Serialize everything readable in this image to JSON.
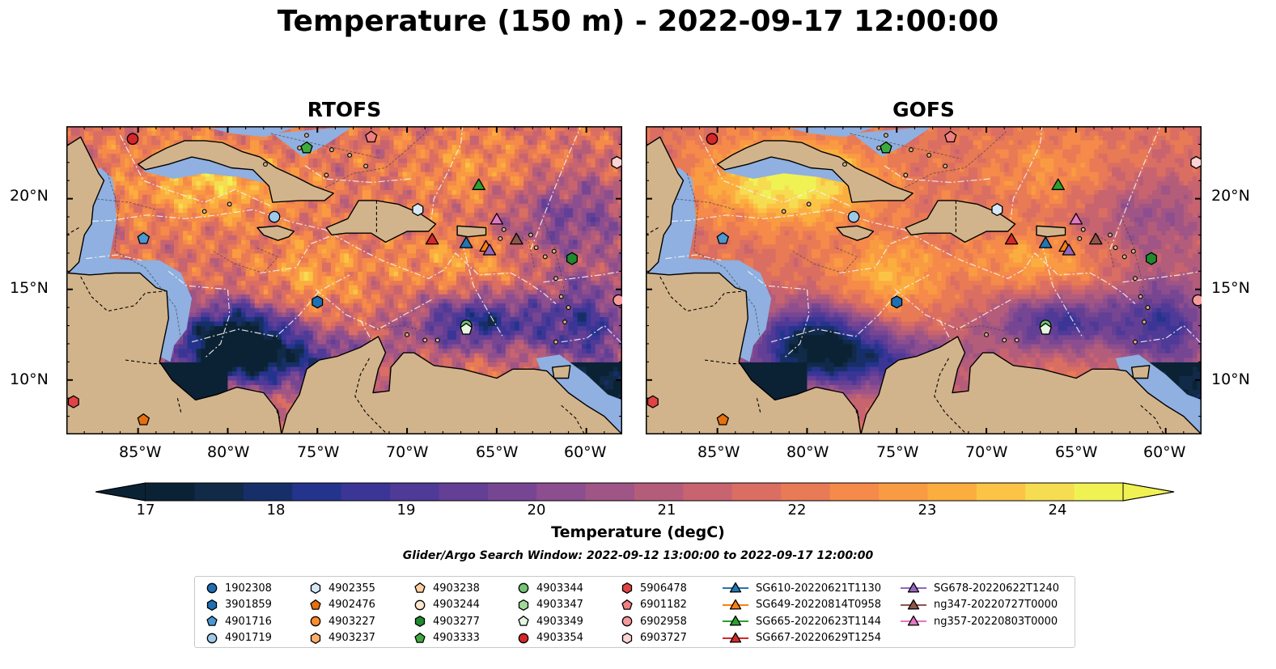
{
  "title": "Temperature (150 m) - 2022-09-17 12:00:00",
  "panels": [
    {
      "title": "RTOFS",
      "variant": "rtofs"
    },
    {
      "title": "GOFS",
      "variant": "gofs"
    }
  ],
  "lon_ticks": [
    "85°W",
    "80°W",
    "75°W",
    "70°W",
    "65°W",
    "60°W"
  ],
  "lat_ticks": [
    "20°N",
    "15°N",
    "10°N"
  ],
  "map_extent": {
    "lon": [
      -89,
      -58
    ],
    "lat": [
      7,
      24
    ]
  },
  "colorbar": {
    "label": "Temperature (degC)",
    "min": 16.5,
    "max": 24.5,
    "ticks": [
      "17",
      "18",
      "19",
      "20",
      "21",
      "22",
      "23",
      "24"
    ],
    "colors": [
      "#0b2234",
      "#112a48",
      "#172f68",
      "#24348c",
      "#3b3596",
      "#4f3a97",
      "#633f95",
      "#774693",
      "#8c4e8e",
      "#9f5585",
      "#b45d7b",
      "#c8646f",
      "#da6e63",
      "#e87a55",
      "#f58a4a",
      "#f99b42",
      "#fbae3f",
      "#fbc447",
      "#f6dc50",
      "#f0f254"
    ],
    "extend": "both"
  },
  "search_window": "Glider/Argo Search Window: 2022-09-12 13:00:00 to 2022-09-17 12:00:00",
  "land_color": "#d2b48c",
  "shelf_color": "#8fb0e0",
  "legend_items": [
    {
      "label": "1902308",
      "shape": "circle",
      "color": "#1f6fb4"
    },
    {
      "label": "3901859",
      "shape": "hexagon",
      "color": "#1f6fb4"
    },
    {
      "label": "4901716",
      "shape": "pentagon",
      "color": "#4a98d2"
    },
    {
      "label": "4901719",
      "shape": "circle",
      "color": "#9ecae9"
    },
    {
      "label": "4902355",
      "shape": "hexagon",
      "color": "#d6e8f6"
    },
    {
      "label": "4902476",
      "shape": "pentagon",
      "color": "#e6700f"
    },
    {
      "label": "4903227",
      "shape": "circle",
      "color": "#fd8d2c"
    },
    {
      "label": "4903237",
      "shape": "hexagon",
      "color": "#fdae6b"
    },
    {
      "label": "4903238",
      "shape": "pentagon",
      "color": "#fdd0a2"
    },
    {
      "label": "4903244",
      "shape": "circle",
      "color": "#fde7cf"
    },
    {
      "label": "4903277",
      "shape": "hexagon",
      "color": "#1f8a2e"
    },
    {
      "label": "4903333",
      "shape": "pentagon",
      "color": "#3eaa3e"
    },
    {
      "label": "4903344",
      "shape": "circle",
      "color": "#74c476"
    },
    {
      "label": "4903347",
      "shape": "hexagon",
      "color": "#a1d99b"
    },
    {
      "label": "4903349",
      "shape": "pentagon",
      "color": "#e5f5e0"
    },
    {
      "label": "4903354",
      "shape": "circle",
      "color": "#d62728"
    },
    {
      "label": "5906478",
      "shape": "hexagon",
      "color": "#e04444"
    },
    {
      "label": "6901182",
      "shape": "pentagon",
      "color": "#f07f7f"
    },
    {
      "label": "6902958",
      "shape": "circle",
      "color": "#f79a9a"
    },
    {
      "label": "6903727",
      "shape": "hexagon",
      "color": "#fdd3d3"
    },
    {
      "label": "SG610-20220621T1130",
      "shape": "triangle",
      "color": "#1f77b4"
    },
    {
      "label": "SG649-20220814T0958",
      "shape": "triangle",
      "color": "#ff7f0e"
    },
    {
      "label": "SG665-20220623T1144",
      "shape": "triangle",
      "color": "#2ca02c"
    },
    {
      "label": "SG667-20220629T1254",
      "shape": "triangle",
      "color": "#d62728"
    },
    {
      "label": "SG678-20220622T1240",
      "shape": "triangle",
      "color": "#9467bd"
    },
    {
      "label": "ng347-20220727T0000",
      "shape": "triangle",
      "color": "#8c564b"
    },
    {
      "label": "ng357-20220803T0000",
      "shape": "triangle",
      "color": "#e377c2"
    }
  ],
  "observations": [
    {
      "id": "4903354",
      "lon": -85.3,
      "lat": 23.3
    },
    {
      "id": "5906478",
      "lon": -88.6,
      "lat": 8.8
    },
    {
      "id": "4902476",
      "lon": -84.7,
      "lat": 7.8
    },
    {
      "id": "4901716",
      "lon": -84.7,
      "lat": 17.8
    },
    {
      "id": "4901719",
      "lon": -77.4,
      "lat": 19.0
    },
    {
      "id": "3901859",
      "lon": -75.0,
      "lat": 14.3
    },
    {
      "id": "4903333",
      "lon": -75.6,
      "lat": 22.8
    },
    {
      "id": "6901182",
      "lon": -72.0,
      "lat": 23.4
    },
    {
      "id": "4902355",
      "lon": -69.4,
      "lat": 19.4
    },
    {
      "id": "4903344",
      "lon": -66.7,
      "lat": 13.0
    },
    {
      "id": "4903349",
      "lon": -66.7,
      "lat": 12.8
    },
    {
      "id": "4903277",
      "lon": -60.8,
      "lat": 16.7
    },
    {
      "id": "6903727",
      "lon": -58.3,
      "lat": 22.0
    },
    {
      "id": "6902958",
      "lon": -58.2,
      "lat": 14.4
    },
    {
      "id": "SG665-20220623T1144",
      "lon": -66.0,
      "lat": 20.7
    },
    {
      "id": "SG667-20220629T1254",
      "lon": -68.6,
      "lat": 17.7
    },
    {
      "id": "SG610-20220621T1130",
      "lon": -66.7,
      "lat": 17.5
    },
    {
      "id": "SG649-20220814T0958",
      "lon": -65.6,
      "lat": 17.3
    },
    {
      "id": "SG678-20220622T1240",
      "lon": -65.4,
      "lat": 17.1
    },
    {
      "id": "ng347-20220727T0000",
      "lon": -63.9,
      "lat": 17.7
    },
    {
      "id": "ng357-20220803T0000",
      "lon": -65.0,
      "lat": 18.8
    }
  ]
}
